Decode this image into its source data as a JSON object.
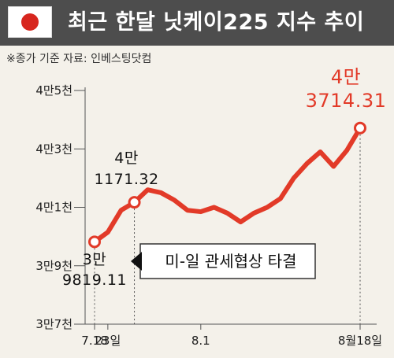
{
  "header": {
    "title": "최근 한달 닛케이225 지수 추이",
    "source": "※종가 기준   자료: 인베스팅닷컴"
  },
  "chart_data": {
    "type": "line",
    "ylim": [
      37000,
      45000
    ],
    "y_ticks": [
      {
        "value": 37000,
        "label": "3만7천"
      },
      {
        "value": 39000,
        "label": "3만9천"
      },
      {
        "value": 41000,
        "label": "4만1천"
      },
      {
        "value": 43000,
        "label": "4만3천"
      },
      {
        "value": 45000,
        "label": "4만5천"
      }
    ],
    "x_ticks": [
      {
        "index": 0,
        "label": "7.18"
      },
      {
        "index": 1,
        "label": "23일"
      },
      {
        "index": 8,
        "label": "8.1"
      },
      {
        "index": 20,
        "label": "8월18일"
      }
    ],
    "series": [
      {
        "values": [
          39819.11,
          40150,
          40900,
          41171.32,
          41600,
          41500,
          41250,
          40900,
          40850,
          41000,
          40800,
          40500,
          40800,
          41000,
          41300,
          42000,
          42500,
          42900,
          42400,
          42950,
          43714.31
        ]
      }
    ],
    "annotations": [
      {
        "index": 0,
        "line1": "3만",
        "line2": "9819.11"
      },
      {
        "index": 3,
        "line1": "4만",
        "line2": "1171.32"
      },
      {
        "index": 20,
        "line1": "4만",
        "line2": "3714.31"
      }
    ],
    "callout": {
      "index": 3,
      "text": "미-일 관세협상 타결"
    }
  },
  "colors": {
    "line": "#e23a28",
    "banner": "#4d4d4d",
    "background": "#f4f1ea",
    "accent_text": "#e23a28",
    "axis": "#555555"
  }
}
